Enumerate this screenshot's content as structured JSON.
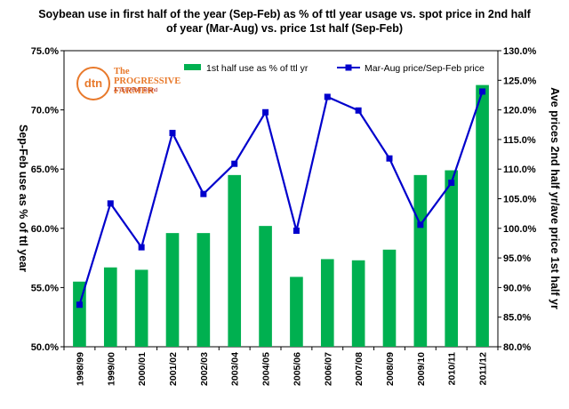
{
  "chart_data": {
    "type": "bar",
    "title_lines": [
      "Soybean use in first half of the year (Sep-Feb)  as % of ttl year usage vs. spot price in 2nd half",
      "of year (Mar-Aug) vs. price 1st half (Sep-Feb)"
    ],
    "ylabel": "Sep-Feb use as % of ttl year",
    "y2label": "Ave prices 2nd half yr/ave price 1st half yr",
    "categories": [
      "1998/99",
      "1999/00",
      "2000/01",
      "2001/02",
      "2002/03",
      "2003/04",
      "2004/05",
      "2005/06",
      "2006/07",
      "2007/08",
      "2008/09",
      "2009/10",
      "2010/11",
      "2011/12"
    ],
    "ylim": [
      50,
      75
    ],
    "y_ticks": [
      50,
      55,
      60,
      65,
      70,
      75
    ],
    "y_tick_labels": [
      "50.0%",
      "55.0%",
      "60.0%",
      "65.0%",
      "70.0%",
      "75.0%"
    ],
    "y2lim": [
      80,
      130
    ],
    "y2_ticks": [
      80,
      85,
      90,
      95,
      100,
      105,
      110,
      115,
      120,
      125,
      130
    ],
    "y2_tick_labels": [
      "80.0%",
      "85.0%",
      "90.0%",
      "95.0%",
      "100.0%",
      "105.0%",
      "110.0%",
      "115.0%",
      "120.0%",
      "125.0%",
      "130.0%"
    ],
    "series": [
      {
        "name": "1st half use as % of ttl yr",
        "kind": "bar",
        "axis": "left",
        "color": "#00b050",
        "values": [
          55.5,
          56.7,
          56.5,
          59.6,
          59.6,
          64.5,
          60.2,
          55.9,
          57.4,
          57.3,
          58.2,
          64.5,
          64.9,
          72.1
        ]
      },
      {
        "name": "Mar-Aug price/Sep-Feb price",
        "kind": "line",
        "axis": "right",
        "color": "#0000cc",
        "values": [
          87.1,
          104.2,
          96.8,
          116.1,
          105.8,
          110.9,
          119.6,
          99.6,
          122.2,
          119.9,
          111.8,
          100.6,
          107.7,
          123.1
        ]
      }
    ],
    "legend_position": "top"
  },
  "logo": {
    "mark": "dtn",
    "name": "The PROGRESSIVE FARMER",
    "tagline": "A TELVENT Brand"
  }
}
